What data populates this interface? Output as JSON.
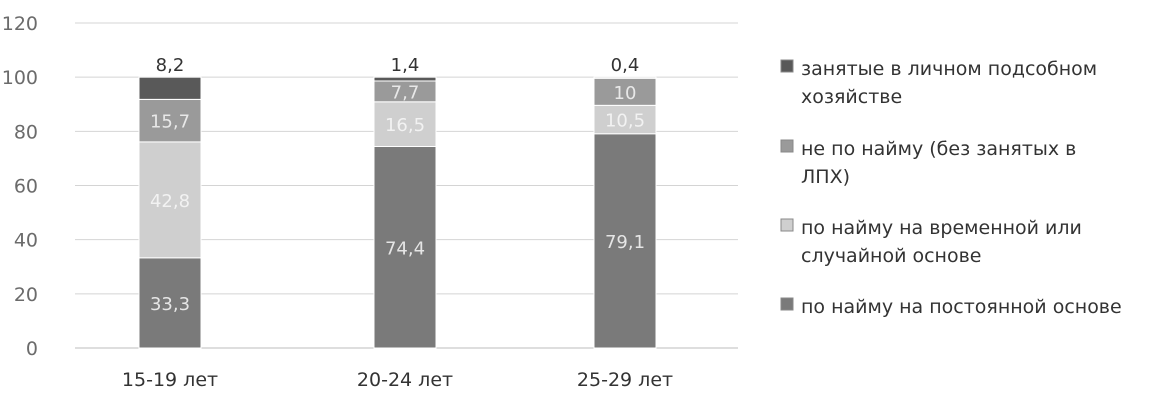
{
  "chart_data": {
    "type": "bar",
    "stacked": true,
    "categories": [
      "15-19 лет",
      "20-24 лет",
      "25-29 лет"
    ],
    "ylim": [
      0,
      120
    ],
    "yticks": [
      0,
      20,
      40,
      60,
      80,
      100,
      120
    ],
    "grid": true,
    "legend_position": "right",
    "series": [
      {
        "name": "по найму на постоянной основе",
        "color": "#7a7a7a",
        "label_color": "#e6e6e6",
        "values": [
          33.3,
          74.4,
          79.1
        ],
        "labels": [
          "33,3",
          "74,4",
          "79,1"
        ]
      },
      {
        "name": "по найму на временной или случайной основе",
        "color": "#cfcfcf",
        "label_color": "#f2f2f2",
        "values": [
          42.8,
          16.5,
          10.5
        ],
        "labels": [
          "42,8",
          "16,5",
          "10,5"
        ]
      },
      {
        "name": "не по найму (без занятых в ЛПХ)",
        "color": "#9a9a9a",
        "label_color": "#e8e8e8",
        "values": [
          15.7,
          7.7,
          10.0
        ],
        "labels": [
          "15,7",
          "7,7",
          "10"
        ]
      },
      {
        "name": "занятые в личном подсобном хозяйстве",
        "color": "#595959",
        "label_color": "#333333",
        "values": [
          8.2,
          1.4,
          0.4
        ],
        "labels": [
          "8,2",
          "1,4",
          "0,4"
        ]
      }
    ],
    "legend": [
      {
        "lines": [
          "занятые в личном подсобном",
          "хозяйстве"
        ],
        "color": "#595959"
      },
      {
        "lines": [
          "не по найму (без занятых в",
          "ЛПХ)"
        ],
        "color": "#9a9a9a"
      },
      {
        "lines": [
          "по найму на временной или",
          "случайной основе"
        ],
        "color": "#cfcfcf"
      },
      {
        "lines": [
          "по найму на постоянной основе"
        ],
        "color": "#7a7a7a"
      }
    ]
  }
}
